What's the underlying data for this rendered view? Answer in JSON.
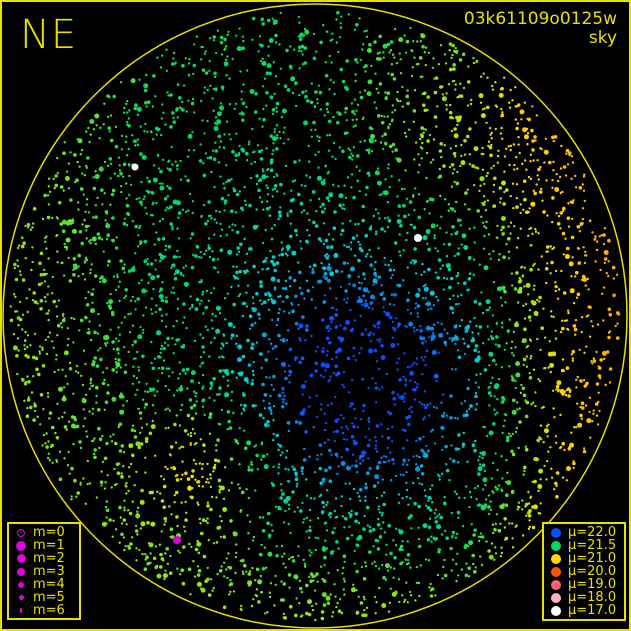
{
  "direction_label": "NE",
  "title": {
    "id": "03k61109o0125w",
    "subtitle": "sky"
  },
  "colors": {
    "frame": "#e8e000",
    "magnitude_marker": "#e000e0"
  },
  "magnitude_legend": [
    {
      "label": "m=0",
      "hollow": true
    },
    {
      "label": "m=1"
    },
    {
      "label": "m=2"
    },
    {
      "label": "m=3"
    },
    {
      "label": "m=4"
    },
    {
      "label": "m=5"
    },
    {
      "label": "m=6"
    }
  ],
  "brightness_legend": [
    {
      "label": "μ=22.0",
      "color": "#0a4cff"
    },
    {
      "label": "μ=21.5",
      "color": "#00d860"
    },
    {
      "label": "μ=21.0",
      "color": "#ffd800"
    },
    {
      "label": "μ=20.0",
      "color": "#ff5010"
    },
    {
      "label": "μ=19.0",
      "color": "#ff6070"
    },
    {
      "label": "μ=18.0",
      "color": "#ffb0c0"
    },
    {
      "label": "μ=17.0",
      "color": "#ffffff"
    }
  ]
}
